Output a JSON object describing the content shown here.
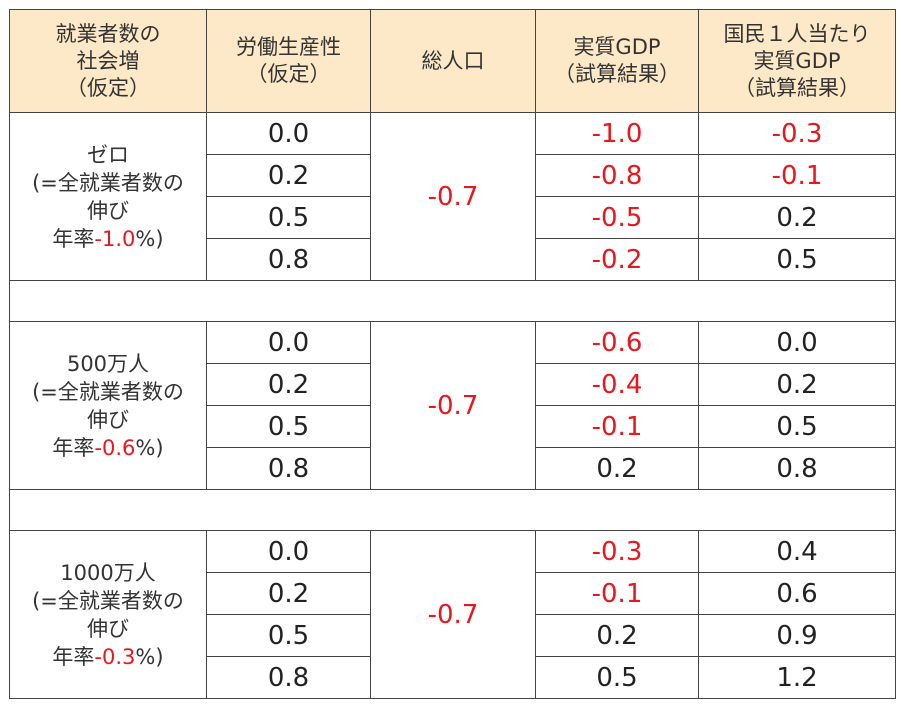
{
  "headers": {
    "growth": [
      "就業者数の",
      "社会増",
      "（仮定）"
    ],
    "productivity": [
      "労働生産性",
      "（仮定）"
    ],
    "population": [
      "総人口"
    ],
    "gdp": [
      "実質GDP",
      "（試算結果）"
    ],
    "gdp_per_capita": [
      "国民１人当たり",
      "実質GDP",
      "（試算結果）"
    ]
  },
  "groups": [
    {
      "label": [
        "ゼロ",
        "(=全就業者数の",
        "伸び"
      ],
      "rate_prefix": "年率",
      "rate_value": "-1.0",
      "rate_suffix": "%)",
      "population": "-0.7",
      "rows": [
        {
          "productivity": "0.0",
          "gdp": "-1.0",
          "gdp_neg": true,
          "per_capita": "-0.3",
          "per_capita_neg": true
        },
        {
          "productivity": "0.2",
          "gdp": "-0.8",
          "gdp_neg": true,
          "per_capita": "-0.1",
          "per_capita_neg": true
        },
        {
          "productivity": "0.5",
          "gdp": "-0.5",
          "gdp_neg": true,
          "per_capita": "0.2",
          "per_capita_neg": false
        },
        {
          "productivity": "0.8",
          "gdp": "-0.2",
          "gdp_neg": true,
          "per_capita": "0.5",
          "per_capita_neg": false
        }
      ]
    },
    {
      "label": [
        "500万人",
        "(=全就業者数の",
        "伸び"
      ],
      "rate_prefix": "年率",
      "rate_value": "-0.6",
      "rate_suffix": "%)",
      "population": "-0.7",
      "rows": [
        {
          "productivity": "0.0",
          "gdp": "-0.6",
          "gdp_neg": true,
          "per_capita": "0.0",
          "per_capita_neg": false
        },
        {
          "productivity": "0.2",
          "gdp": "-0.4",
          "gdp_neg": true,
          "per_capita": "0.2",
          "per_capita_neg": false
        },
        {
          "productivity": "0.5",
          "gdp": "-0.1",
          "gdp_neg": true,
          "per_capita": "0.5",
          "per_capita_neg": false
        },
        {
          "productivity": "0.8",
          "gdp": "0.2",
          "gdp_neg": false,
          "per_capita": "0.8",
          "per_capita_neg": false
        }
      ]
    },
    {
      "label": [
        "1000万人",
        "(=全就業者数の",
        "伸び"
      ],
      "rate_prefix": "年率",
      "rate_value": "-0.3",
      "rate_suffix": "%)",
      "population": "-0.7",
      "rows": [
        {
          "productivity": "0.0",
          "gdp": "-0.3",
          "gdp_neg": true,
          "per_capita": "0.4",
          "per_capita_neg": false
        },
        {
          "productivity": "0.2",
          "gdp": "-0.1",
          "gdp_neg": true,
          "per_capita": "0.6",
          "per_capita_neg": false
        },
        {
          "productivity": "0.5",
          "gdp": "0.2",
          "gdp_neg": false,
          "per_capita": "0.9",
          "per_capita_neg": false
        },
        {
          "productivity": "0.8",
          "gdp": "0.5",
          "gdp_neg": false,
          "per_capita": "1.2",
          "per_capita_neg": false
        }
      ]
    }
  ]
}
